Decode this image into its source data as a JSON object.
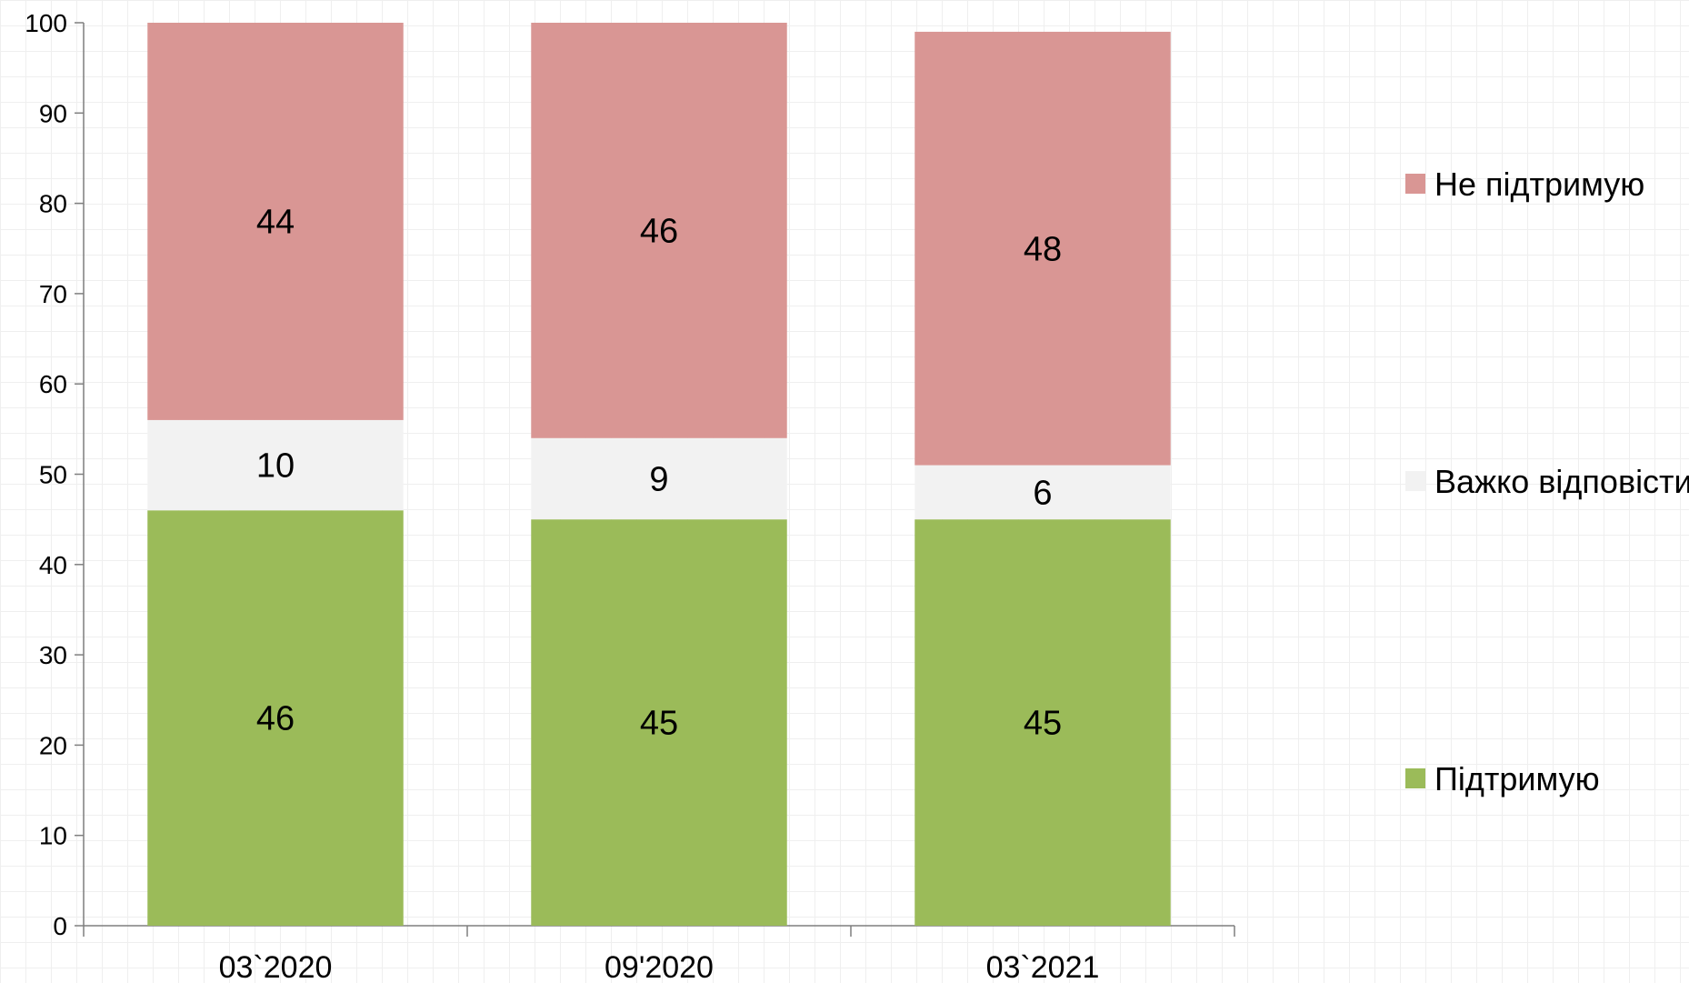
{
  "chart_data": {
    "type": "bar",
    "stacked": true,
    "categories": [
      "03`2020",
      "09'2020",
      "03`2021"
    ],
    "series": [
      {
        "name": "Підтримую",
        "values": [
          46,
          45,
          45
        ],
        "color": "#9bbb59"
      },
      {
        "name": "Важко відповісти",
        "values": [
          10,
          9,
          6
        ],
        "color": "#f2f2f2"
      },
      {
        "name": "Не підтримую",
        "values": [
          44,
          46,
          48
        ],
        "color": "#d99694"
      }
    ],
    "ylim": [
      0,
      100
    ],
    "yticks": [
      0,
      10,
      20,
      30,
      40,
      50,
      60,
      70,
      80,
      90,
      100
    ],
    "legend_placement": "right",
    "title": "",
    "xlabel": "",
    "ylabel": ""
  }
}
